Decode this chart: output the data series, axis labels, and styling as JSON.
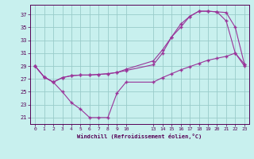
{
  "background_color": "#c8f0ee",
  "grid_color": "#99ccca",
  "line_color": "#993399",
  "xlabel": "Windchill (Refroidissement éolien,°C)",
  "x_ticks_pos": [
    0,
    1,
    2,
    3,
    4,
    5,
    6,
    7,
    8,
    9,
    10,
    13,
    14,
    15,
    16,
    17,
    18,
    19,
    20,
    21,
    22,
    23
  ],
  "x_tick_labels": [
    "0",
    "1",
    "2",
    "3",
    "4",
    "5",
    "6",
    "7",
    "8",
    "9",
    "10",
    "13",
    "14",
    "15",
    "16",
    "17",
    "18",
    "19",
    "20",
    "21",
    "22",
    "23"
  ],
  "y_ticks": [
    21,
    23,
    25,
    27,
    29,
    31,
    33,
    35,
    37
  ],
  "xlim": [
    -0.5,
    23.5
  ],
  "ylim": [
    20.0,
    38.5
  ],
  "line1_x": [
    0,
    1,
    2,
    3,
    4,
    5,
    6,
    7,
    8,
    9,
    10,
    13,
    14,
    15,
    16,
    17,
    18,
    19,
    20,
    21,
    22,
    23
  ],
  "line1_y": [
    29,
    27.3,
    26.5,
    25.0,
    23.3,
    22.3,
    21.0,
    21.0,
    21.0,
    24.8,
    26.5,
    26.5,
    27.2,
    27.8,
    28.4,
    28.9,
    29.4,
    29.9,
    30.2,
    30.5,
    31.0,
    29.0
  ],
  "line2_x": [
    0,
    1,
    2,
    3,
    4,
    5,
    6,
    7,
    8,
    9,
    10,
    13,
    14,
    15,
    16,
    17,
    18,
    19,
    20,
    21,
    22,
    23
  ],
  "line2_y": [
    29,
    27.3,
    26.5,
    27.2,
    27.5,
    27.6,
    27.6,
    27.7,
    27.8,
    28.0,
    28.3,
    29.2,
    31.0,
    33.5,
    35.5,
    36.7,
    37.5,
    37.5,
    37.4,
    37.3,
    35.0,
    29.3
  ],
  "line3_x": [
    0,
    1,
    2,
    3,
    4,
    5,
    6,
    7,
    8,
    9,
    10,
    13,
    14,
    15,
    16,
    17,
    18,
    19,
    20,
    21,
    22,
    23
  ],
  "line3_y": [
    29,
    27.3,
    26.5,
    27.2,
    27.5,
    27.6,
    27.6,
    27.7,
    27.8,
    28.0,
    28.5,
    29.8,
    31.5,
    33.5,
    35.0,
    36.7,
    37.5,
    37.5,
    37.4,
    36.0,
    31.0,
    29.3
  ],
  "figsize": [
    3.2,
    2.0
  ],
  "dpi": 100
}
